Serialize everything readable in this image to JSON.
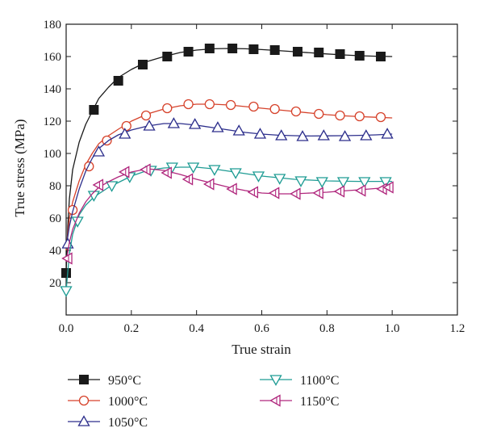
{
  "chart_data": {
    "type": "line",
    "xlabel": "True strain",
    "ylabel": "True stress (MPa)",
    "xlim": [
      0,
      1.2
    ],
    "ylim": [
      0,
      180
    ],
    "xticks": [
      "0.0",
      "0.2",
      "0.4",
      "0.6",
      "0.8",
      "1.0",
      "1.2"
    ],
    "yticks": [
      "20",
      "40",
      "60",
      "80",
      "100",
      "120",
      "140",
      "160",
      "180"
    ],
    "grid": false,
    "legend_position": "bottom",
    "series": [
      {
        "name": "950°C",
        "color": "#1a1a1a",
        "marker": "square-filled",
        "x": [
          0.0,
          0.005,
          0.01,
          0.02,
          0.04,
          0.06,
          0.08,
          0.1,
          0.13,
          0.16,
          0.2,
          0.25,
          0.3,
          0.35,
          0.4,
          0.45,
          0.5,
          0.55,
          0.6,
          0.65,
          0.7,
          0.75,
          0.8,
          0.85,
          0.9,
          0.95,
          1.0
        ],
        "y": [
          26,
          55,
          72,
          90,
          107,
          118,
          126,
          134,
          141,
          147,
          152,
          157,
          160,
          162.5,
          164,
          164.8,
          165,
          164.8,
          164.3,
          163.7,
          163,
          162.3,
          161.6,
          161,
          160.5,
          160.2,
          160
        ],
        "markers_x": [
          0.0,
          0.085,
          0.16,
          0.235,
          0.31,
          0.375,
          0.44,
          0.51,
          0.575,
          0.64,
          0.71,
          0.775,
          0.84,
          0.9,
          0.965
        ],
        "markers_y": [
          26,
          127,
          145,
          155,
          160,
          163,
          165,
          165,
          164.5,
          164,
          163,
          162.5,
          161.5,
          160.5,
          160
        ]
      },
      {
        "name": "1000°C",
        "color": "#d6422b",
        "marker": "circle-open",
        "x": [
          0.0,
          0.01,
          0.02,
          0.04,
          0.06,
          0.08,
          0.1,
          0.13,
          0.16,
          0.2,
          0.25,
          0.3,
          0.35,
          0.4,
          0.45,
          0.5,
          0.55,
          0.6,
          0.65,
          0.7,
          0.75,
          0.8,
          0.85,
          0.9,
          0.95,
          1.0
        ],
        "y": [
          40,
          60,
          70,
          83,
          93,
          100,
          106,
          111,
          115,
          120,
          124.5,
          127.5,
          129.5,
          130.5,
          130.5,
          130,
          129,
          128,
          127,
          126,
          125,
          124,
          123.3,
          122.8,
          122.4,
          122
        ],
        "markers_x": [
          0.02,
          0.07,
          0.125,
          0.185,
          0.245,
          0.31,
          0.375,
          0.44,
          0.505,
          0.575,
          0.64,
          0.705,
          0.775,
          0.84,
          0.9,
          0.965
        ],
        "markers_y": [
          65,
          92,
          108,
          117,
          123.5,
          128,
          130.5,
          130.5,
          130,
          129,
          127.5,
          126,
          124.5,
          123.5,
          123,
          122.5
        ]
      },
      {
        "name": "1050°C",
        "color": "#2d2f8c",
        "marker": "triangle-up-open",
        "x": [
          0.0,
          0.01,
          0.02,
          0.04,
          0.06,
          0.08,
          0.1,
          0.13,
          0.16,
          0.2,
          0.25,
          0.3,
          0.35,
          0.4,
          0.45,
          0.5,
          0.55,
          0.6,
          0.65,
          0.7,
          0.75,
          0.8,
          0.85,
          0.9,
          0.95,
          1.0
        ],
        "y": [
          42,
          55,
          64,
          78,
          89,
          97,
          103,
          108,
          111.5,
          114.5,
          117,
          118.5,
          118.5,
          117.5,
          116,
          114.5,
          113,
          112,
          111.3,
          111,
          110.8,
          110.9,
          111,
          111.2,
          111.5,
          112
        ],
        "markers_x": [
          0.005,
          0.1,
          0.18,
          0.255,
          0.33,
          0.395,
          0.465,
          0.53,
          0.595,
          0.66,
          0.725,
          0.79,
          0.855,
          0.92,
          0.985
        ],
        "markers_y": [
          44,
          101,
          112,
          117,
          118.5,
          118,
          116,
          114,
          112,
          111,
          110.5,
          111,
          110.5,
          111,
          112
        ]
      },
      {
        "name": "1100°C",
        "color": "#1f9c94",
        "marker": "triangle-down-open",
        "x": [
          0.0,
          0.01,
          0.02,
          0.04,
          0.06,
          0.08,
          0.1,
          0.13,
          0.16,
          0.2,
          0.25,
          0.3,
          0.35,
          0.4,
          0.45,
          0.5,
          0.55,
          0.6,
          0.65,
          0.7,
          0.75,
          0.8,
          0.85,
          0.9,
          0.95,
          1.0
        ],
        "y": [
          15,
          38,
          50,
          62,
          68,
          72,
          75,
          79,
          82,
          86,
          89.5,
          91,
          91.5,
          91.5,
          90.5,
          89,
          87.5,
          86,
          85,
          84,
          83.5,
          83,
          82.8,
          82.7,
          82.7,
          82.7
        ],
        "markers_x": [
          0.0,
          0.035,
          0.085,
          0.14,
          0.195,
          0.26,
          0.325,
          0.39,
          0.455,
          0.52,
          0.59,
          0.655,
          0.72,
          0.785,
          0.85,
          0.915,
          0.98
        ],
        "markers_y": [
          15,
          58,
          74,
          80,
          85.5,
          89.5,
          91.5,
          91.5,
          90,
          88,
          86,
          84.5,
          83,
          82.5,
          82.5,
          82.5,
          82.5
        ]
      },
      {
        "name": "1150°C",
        "color": "#b0277d",
        "marker": "triangle-left-open",
        "x": [
          0.0,
          0.01,
          0.02,
          0.04,
          0.06,
          0.08,
          0.1,
          0.13,
          0.16,
          0.2,
          0.25,
          0.3,
          0.35,
          0.4,
          0.45,
          0.5,
          0.55,
          0.6,
          0.65,
          0.7,
          0.75,
          0.8,
          0.85,
          0.9,
          0.95,
          1.0
        ],
        "y": [
          33,
          45,
          53,
          63,
          70,
          75,
          79,
          82.5,
          85.5,
          88.5,
          90.5,
          89.5,
          87,
          84,
          81.5,
          79,
          77,
          75.5,
          75,
          75,
          75.5,
          76,
          76.8,
          77.5,
          78.3,
          79
        ],
        "markers_x": [
          0.005,
          0.1,
          0.18,
          0.245,
          0.31,
          0.375,
          0.44,
          0.51,
          0.575,
          0.64,
          0.705,
          0.775,
          0.84,
          0.905,
          0.97,
          0.99
        ],
        "markers_y": [
          35,
          80.5,
          88.5,
          90,
          88,
          84,
          81,
          78,
          76,
          75.5,
          75,
          75.5,
          76.5,
          77,
          78,
          79
        ]
      }
    ]
  }
}
